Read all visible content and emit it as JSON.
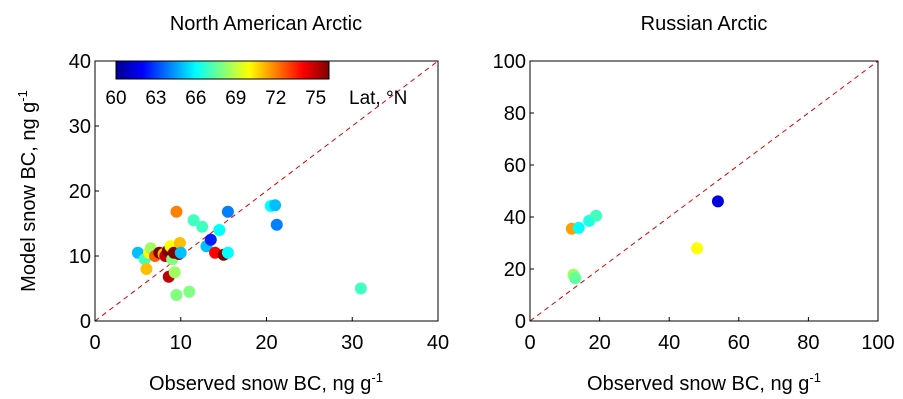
{
  "figure": {
    "ylabel": "Model snow BC, ng g",
    "ylabel_sup": "-1",
    "xlabel": "Observed snow BC, ng g",
    "xlabel_sup": "-1"
  },
  "colorbar": {
    "range": [
      60,
      76
    ],
    "ticks": [
      "60",
      "63",
      "66",
      "69",
      "72",
      "75"
    ],
    "label": "Lat, °N",
    "colormap": "jet"
  },
  "chart_data": [
    {
      "type": "scatter",
      "title": "North American Arctic",
      "xlim": [
        0,
        40
      ],
      "ylim": [
        0,
        40
      ],
      "xticks": [
        0,
        10,
        20,
        30,
        40
      ],
      "yticks": [
        0,
        10,
        20,
        30,
        40
      ],
      "reference_line": "1:1 dashed red",
      "color_variable": "latitude",
      "points": [
        {
          "x": 5.0,
          "y": 10.5,
          "lat": 65.0
        },
        {
          "x": 5.8,
          "y": 9.5,
          "lat": 67.0
        },
        {
          "x": 6.0,
          "y": 8.0,
          "lat": 71.0
        },
        {
          "x": 6.3,
          "y": 10.5,
          "lat": 70.0
        },
        {
          "x": 6.5,
          "y": 11.2,
          "lat": 68.5
        },
        {
          "x": 7.0,
          "y": 10.0,
          "lat": 72.5
        },
        {
          "x": 7.5,
          "y": 10.5,
          "lat": 76.0
        },
        {
          "x": 8.0,
          "y": 10.3,
          "lat": 71.0
        },
        {
          "x": 8.2,
          "y": 10.0,
          "lat": 75.0
        },
        {
          "x": 8.5,
          "y": 10.8,
          "lat": 76.0
        },
        {
          "x": 8.6,
          "y": 6.8,
          "lat": 75.0
        },
        {
          "x": 8.8,
          "y": 11.5,
          "lat": 70.0
        },
        {
          "x": 9.0,
          "y": 9.5,
          "lat": 68.0
        },
        {
          "x": 9.2,
          "y": 10.5,
          "lat": 76.0
        },
        {
          "x": 9.3,
          "y": 7.5,
          "lat": 68.5
        },
        {
          "x": 9.5,
          "y": 4.0,
          "lat": 68.0
        },
        {
          "x": 9.5,
          "y": 16.8,
          "lat": 72.0
        },
        {
          "x": 9.8,
          "y": 10.3,
          "lat": 76.0
        },
        {
          "x": 9.9,
          "y": 12.0,
          "lat": 71.0
        },
        {
          "x": 10.0,
          "y": 10.5,
          "lat": 65.0
        },
        {
          "x": 11.0,
          "y": 4.5,
          "lat": 68.0
        },
        {
          "x": 11.5,
          "y": 15.5,
          "lat": 67.0
        },
        {
          "x": 12.5,
          "y": 14.5,
          "lat": 67.0
        },
        {
          "x": 13.0,
          "y": 11.5,
          "lat": 65.0
        },
        {
          "x": 13.5,
          "y": 12.5,
          "lat": 62.5
        },
        {
          "x": 14.0,
          "y": 10.5,
          "lat": 74.0
        },
        {
          "x": 14.5,
          "y": 14.0,
          "lat": 66.0
        },
        {
          "x": 15.0,
          "y": 10.2,
          "lat": 76.0
        },
        {
          "x": 15.5,
          "y": 10.5,
          "lat": 66.0
        },
        {
          "x": 15.5,
          "y": 16.8,
          "lat": 64.0
        },
        {
          "x": 20.5,
          "y": 17.7,
          "lat": 66.0
        },
        {
          "x": 21.0,
          "y": 17.8,
          "lat": 65.0
        },
        {
          "x": 21.2,
          "y": 14.8,
          "lat": 64.0
        },
        {
          "x": 31.0,
          "y": 5.0,
          "lat": 67.0
        }
      ]
    },
    {
      "type": "scatter",
      "title": "Russian Arctic",
      "xlim": [
        0,
        100
      ],
      "ylim": [
        0,
        100
      ],
      "xticks": [
        0,
        20,
        40,
        60,
        80,
        100
      ],
      "yticks": [
        0,
        20,
        40,
        60,
        80,
        100
      ],
      "reference_line": "1:1 dashed red",
      "color_variable": "latitude",
      "points": [
        {
          "x": 12.0,
          "y": 35.5,
          "lat": 71.5
        },
        {
          "x": 12.5,
          "y": 17.8,
          "lat": 68.5
        },
        {
          "x": 13.0,
          "y": 16.5,
          "lat": 67.5
        },
        {
          "x": 14.0,
          "y": 35.8,
          "lat": 66.0
        },
        {
          "x": 17.0,
          "y": 38.5,
          "lat": 66.5
        },
        {
          "x": 19.0,
          "y": 40.5,
          "lat": 67.0
        },
        {
          "x": 48.0,
          "y": 28.0,
          "lat": 70.0
        },
        {
          "x": 54.0,
          "y": 46.0,
          "lat": 61.5
        }
      ]
    }
  ]
}
